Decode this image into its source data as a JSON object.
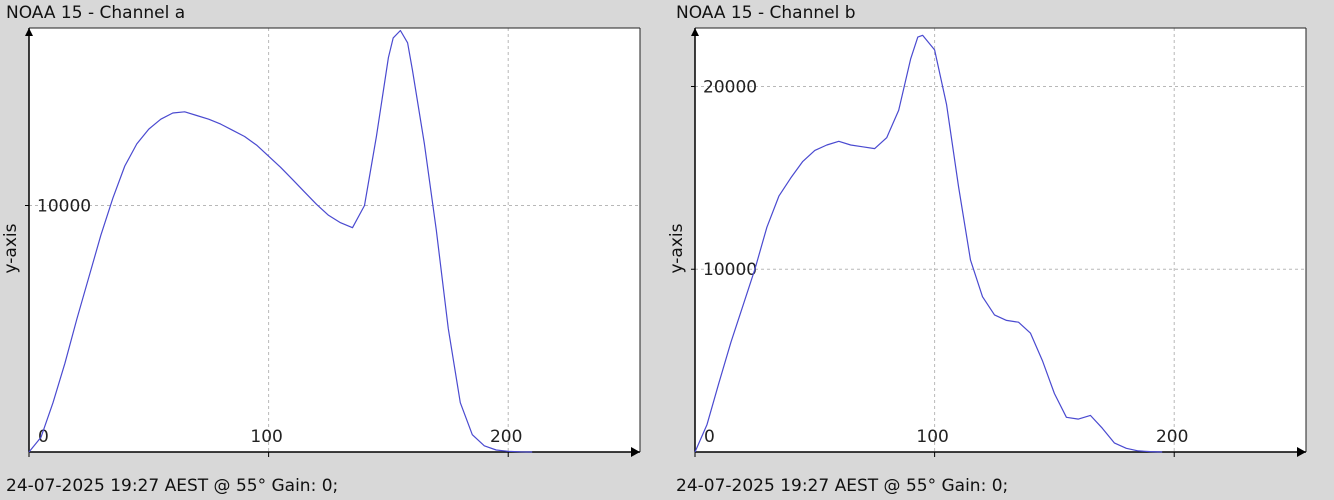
{
  "panels": [
    {
      "title": "NOAA 15 - Channel a",
      "footer": "24-07-2025 19:27 AEST @ 55° Gain: 0;"
    },
    {
      "title": "NOAA 15 - Channel b",
      "footer": "24-07-2025 19:27 AEST @ 55° Gain: 0;"
    }
  ],
  "chart_data": [
    {
      "type": "line",
      "title": "NOAA 15 - Channel a",
      "xlabel": "",
      "ylabel": "y-axis",
      "xlim": [
        0,
        255
      ],
      "ylim": [
        0,
        17200
      ],
      "x_ticks": [
        0,
        100,
        200
      ],
      "y_ticks": [
        10000
      ],
      "grid": true,
      "series": [
        {
          "color": "#4a4ad0",
          "x": [
            0,
            5,
            10,
            15,
            20,
            25,
            30,
            35,
            40,
            45,
            50,
            55,
            60,
            65,
            70,
            75,
            80,
            85,
            90,
            95,
            100,
            105,
            110,
            115,
            120,
            125,
            130,
            135,
            140,
            145,
            150,
            152,
            155,
            158,
            160,
            165,
            170,
            175,
            180,
            185,
            190,
            195,
            200,
            205,
            210
          ],
          "y": [
            0,
            600,
            2000,
            3600,
            5400,
            7100,
            8800,
            10300,
            11600,
            12500,
            13100,
            13500,
            13750,
            13800,
            13650,
            13500,
            13300,
            13050,
            12800,
            12450,
            12000,
            11550,
            11050,
            10550,
            10050,
            9600,
            9300,
            9100,
            10000,
            12800,
            16000,
            16800,
            17100,
            16600,
            15500,
            12500,
            9000,
            5000,
            2000,
            700,
            250,
            80,
            30,
            10,
            0
          ]
        }
      ]
    },
    {
      "type": "line",
      "title": "NOAA 15 - Channel b",
      "xlabel": "",
      "ylabel": "y-axis",
      "xlim": [
        0,
        255
      ],
      "ylim": [
        0,
        23200
      ],
      "x_ticks": [
        0,
        100,
        200
      ],
      "y_ticks": [
        10000,
        20000
      ],
      "grid": true,
      "series": [
        {
          "color": "#4a4ad0",
          "x": [
            0,
            5,
            10,
            15,
            20,
            25,
            30,
            35,
            40,
            45,
            50,
            55,
            60,
            65,
            70,
            75,
            80,
            85,
            90,
            93,
            95,
            100,
            105,
            110,
            115,
            120,
            125,
            130,
            135,
            140,
            145,
            150,
            155,
            160,
            165,
            170,
            175,
            180,
            185,
            190,
            195
          ],
          "y": [
            0,
            1500,
            3800,
            6000,
            8000,
            10000,
            12300,
            14000,
            15000,
            15900,
            16500,
            16800,
            17000,
            16800,
            16700,
            16600,
            17200,
            18700,
            21500,
            22700,
            22800,
            22000,
            19000,
            14500,
            10500,
            8500,
            7500,
            7200,
            7100,
            6500,
            5000,
            3200,
            1900,
            1800,
            2000,
            1300,
            500,
            200,
            60,
            20,
            0
          ]
        }
      ]
    }
  ]
}
